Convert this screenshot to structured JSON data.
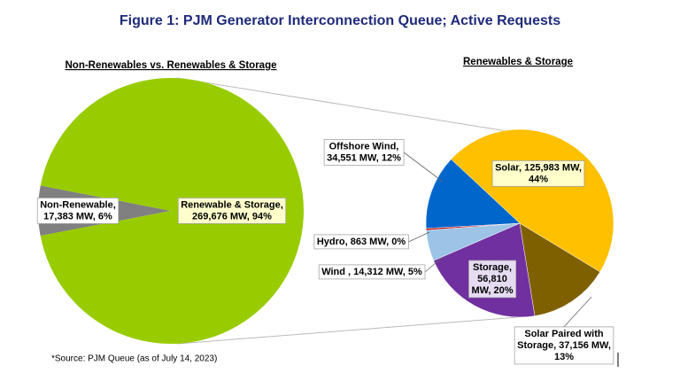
{
  "title": "Figure 1: PJM Generator Interconnection Queue; Active Requests",
  "source": "*Source: PJM Queue (as of July 14, 2023)",
  "chart_data": [
    {
      "type": "pie",
      "title": "Non-Renewables vs. Renewables & Storage",
      "values": [
        17383,
        269676
      ],
      "value_labels": [
        [
          "Non-Renewable,",
          "17,383 MW, 6%"
        ],
        [
          "Renewable & Storage,",
          "269,676 MW, 94%"
        ]
      ],
      "colors": [
        "#808080",
        "#99cc00"
      ]
    },
    {
      "type": "pie",
      "title": "Renewables & Storage",
      "values": [
        125983,
        37156,
        56810,
        14312,
        863,
        34551
      ],
      "value_labels": [
        [
          "Solar, 125,983 MW,",
          "44%"
        ],
        [
          "Solar Paired with",
          "Storage, 37,156 MW,",
          "13%"
        ],
        [
          "Storage,",
          "56,810",
          "MW, 20%"
        ],
        [
          "Wind , 14,312 MW, 5%"
        ],
        [
          "Hydro, 863 MW, 0%"
        ],
        [
          "Offshore Wind,",
          "34,551 MW, 12%"
        ]
      ],
      "colors": [
        "#ffc000",
        "#7f6000",
        "#7030a0",
        "#9dc3e6",
        "#c00000",
        "#0066cc"
      ]
    }
  ]
}
